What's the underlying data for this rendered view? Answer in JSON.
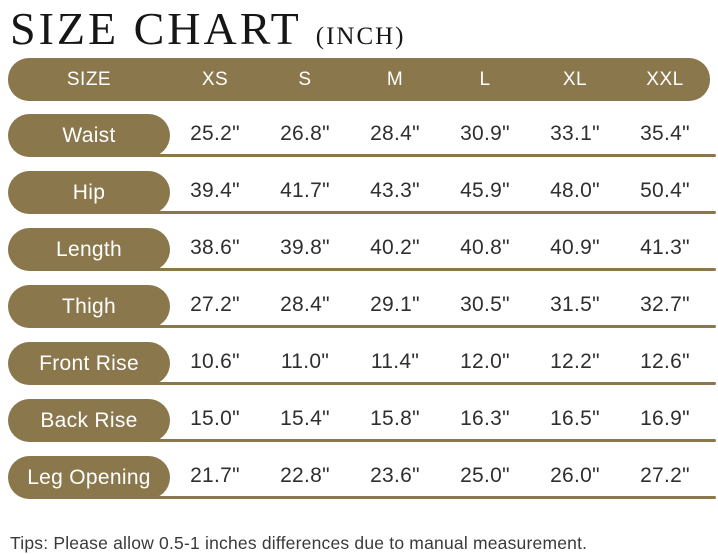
{
  "title": {
    "main": "SIZE CHART",
    "unit": "(INCH)"
  },
  "tips": "Tips: Please allow 0.5-1 inches differences due to manual measurement.",
  "colors": {
    "accent": "#8b774c",
    "pill_text": "#ffffff",
    "value_text": "#2f2f2f",
    "title_text": "#161616"
  },
  "chart_data": {
    "type": "table",
    "title": "SIZE CHART (INCH)",
    "columns": [
      "SIZE",
      "XS",
      "S",
      "M",
      "L",
      "XL",
      "XXL"
    ],
    "rows": [
      {
        "label": "Waist",
        "values": [
          "25.2\"",
          "26.8\"",
          "28.4\"",
          "30.9\"",
          "33.1\"",
          "35.4\""
        ]
      },
      {
        "label": "Hip",
        "values": [
          "39.4\"",
          "41.7\"",
          "43.3\"",
          "45.9\"",
          "48.0\"",
          "50.4\""
        ]
      },
      {
        "label": "Length",
        "values": [
          "38.6\"",
          "39.8\"",
          "40.2\"",
          "40.8\"",
          "40.9\"",
          "41.3\""
        ]
      },
      {
        "label": "Thigh",
        "values": [
          "27.2\"",
          "28.4\"",
          "29.1\"",
          "30.5\"",
          "31.5\"",
          "32.7\""
        ]
      },
      {
        "label": "Front Rise",
        "values": [
          "10.6\"",
          "11.0\"",
          "11.4\"",
          "12.0\"",
          "12.2\"",
          "12.6\""
        ]
      },
      {
        "label": "Back Rise",
        "values": [
          "15.0\"",
          "15.4\"",
          "15.8\"",
          "16.3\"",
          "16.5\"",
          "16.9\""
        ]
      },
      {
        "label": "Leg Opening",
        "values": [
          "21.7\"",
          "22.8\"",
          "23.6\"",
          "25.0\"",
          "26.0\"",
          "27.2\""
        ]
      }
    ],
    "footnote": "Tips: Please allow 0.5-1 inches differences due to manual measurement.",
    "layout_hints": {
      "unit": "inch",
      "label_column_style": "pill",
      "grid": "row-underlines"
    }
  }
}
